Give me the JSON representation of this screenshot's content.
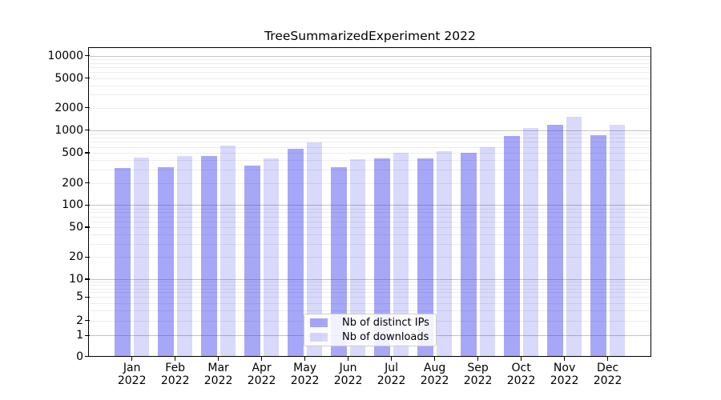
{
  "title": "TreeSummarizedExperiment 2022",
  "chart_data": {
    "type": "bar",
    "title": "TreeSummarizedExperiment 2022",
    "categories": [
      "Jan",
      "Feb",
      "Mar",
      "Apr",
      "May",
      "Jun",
      "Jul",
      "Aug",
      "Sep",
      "Oct",
      "Nov",
      "Dec"
    ],
    "year_label": "2022",
    "series": [
      {
        "name": "Nb of distinct IPs",
        "color": "rgba(35,35,235,0.40)",
        "values": [
          315,
          325,
          455,
          338,
          565,
          320,
          420,
          425,
          498,
          840,
          1170,
          855
        ]
      },
      {
        "name": "Nb of downloads",
        "color": "rgba(0,0,225,0.15)",
        "values": [
          432,
          455,
          625,
          421,
          695,
          412,
          500,
          521,
          595,
          1080,
          1500,
          1170
        ]
      }
    ],
    "y_ticks": [
      0,
      1,
      2,
      5,
      10,
      20,
      50,
      100,
      200,
      500,
      1000,
      2000,
      5000,
      10000
    ],
    "y_scale": "symlog",
    "ylim": [
      0,
      12500
    ],
    "grid": "major+minor horizontal",
    "legend_position": "lower center",
    "colors": {
      "distinct_ips": "#a7a7f7",
      "downloads": "#d9d9fb",
      "grid_major": "#c3c3c3",
      "grid_minor": "#ececec"
    }
  },
  "legend": {
    "items": [
      {
        "label": "Nb of distinct IPs"
      },
      {
        "label": "Nb of downloads"
      }
    ]
  }
}
